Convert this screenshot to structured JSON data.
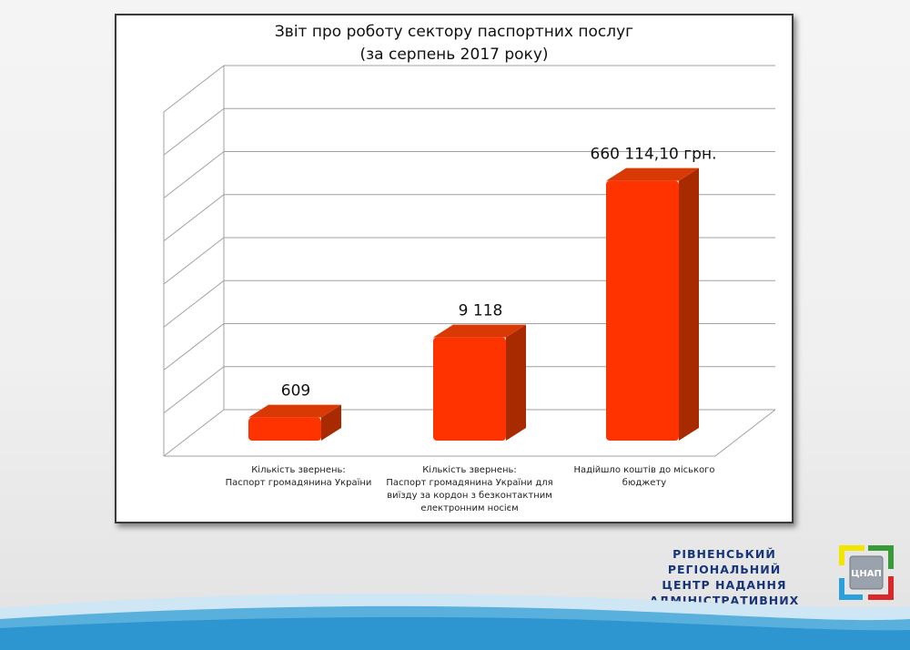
{
  "chart_data": {
    "type": "bar",
    "title": "Звіт про роботу сектору паспортних послуг",
    "subtitle": "(за серпень 2017 року)",
    "categories": [
      "Кількість звернень:\nПаспорт громадянина  України",
      "Кількість звернень:\nПаспорт громадянина України для\nвиїзду за кордон з безконтактним\nелектронним носієм",
      "Надійшло  коштів до міського\nбюджету"
    ],
    "values": [
      609,
      9118,
      660114.1
    ],
    "value_labels": [
      "609",
      "9 118",
      "660 114,10 грн."
    ],
    "bar_levels": [
      0.067,
      0.3,
      0.755
    ],
    "bar_color": "#ff3300",
    "grid": true,
    "style": "3d-column",
    "legend": "none"
  },
  "organization": {
    "lines": [
      "РІВНЕНСЬКИЙ РЕГІОНАЛЬНИЙ",
      "ЦЕНТР НАДАННЯ",
      "АДМІНІСТРАТИВНИХ ПОСЛУГ"
    ],
    "logo_text": "ЦНАП",
    "color": "#17357a"
  }
}
